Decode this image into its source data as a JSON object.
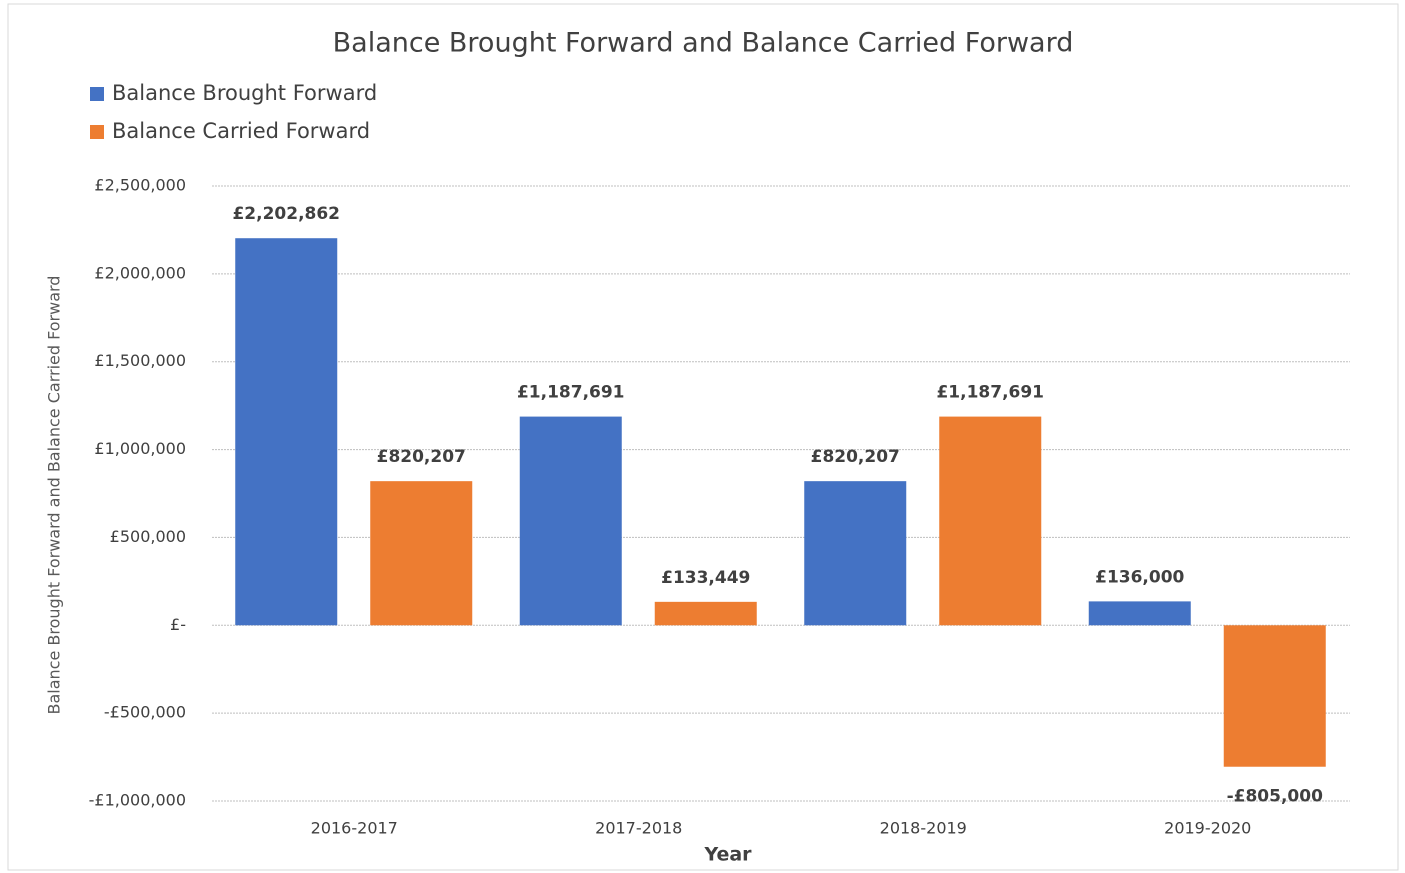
{
  "chart_data": {
    "type": "bar",
    "title": "Balance Brought Forward and Balance Carried Forward",
    "x_label": "Year",
    "y_label": "Balance Brought Forward and Balance Carried Forward",
    "categories": [
      "2016-2017",
      "2017-2018",
      "2018-2019",
      "2019-2020"
    ],
    "series": [
      {
        "name": "Balance Brought Forward",
        "color": "#4472c4",
        "values": [
          2202862,
          1187691,
          820207,
          136000
        ],
        "value_labels": [
          "£2,202,862",
          "£1,187,691",
          "£820,207",
          "£136,000"
        ]
      },
      {
        "name": "Balance Carried Forward",
        "color": "#ed7d31",
        "values": [
          820207,
          133449,
          1187691,
          -805000
        ],
        "value_labels": [
          "£820,207",
          "£133,449",
          "£1,187,691",
          "-£805,000"
        ]
      }
    ],
    "ylim": [
      -1000000,
      2500000
    ],
    "yticks": [
      {
        "value": -1000000,
        "label": "-£1,000,000"
      },
      {
        "value": -500000,
        "label": "-£500,000"
      },
      {
        "value": 0,
        "label": "£-"
      },
      {
        "value": 500000,
        "label": "£500,000"
      },
      {
        "value": 1000000,
        "label": "£1,000,000"
      },
      {
        "value": 1500000,
        "label": "£1,500,000"
      },
      {
        "value": 2000000,
        "label": "£2,000,000"
      },
      {
        "value": 2500000,
        "label": "£2,500,000"
      }
    ],
    "grid": true,
    "legend": "top-left"
  }
}
